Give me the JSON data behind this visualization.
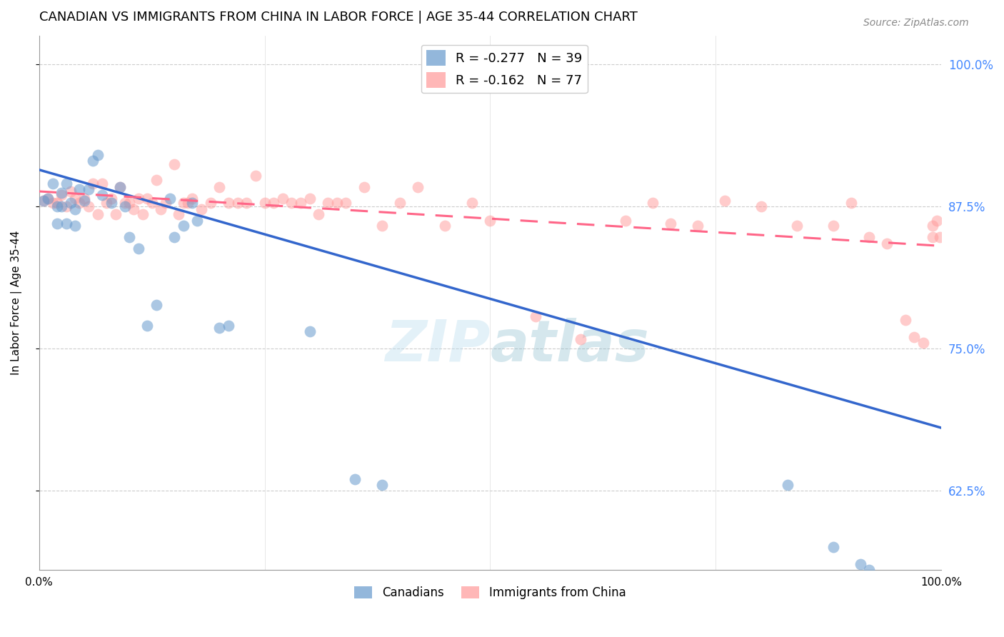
{
  "title": "CANADIAN VS IMMIGRANTS FROM CHINA IN LABOR FORCE | AGE 35-44 CORRELATION CHART",
  "source": "Source: ZipAtlas.com",
  "ylabel": "In Labor Force | Age 35-44",
  "xlabel": "",
  "xlim": [
    0.0,
    1.0
  ],
  "ylim": [
    0.555,
    1.025
  ],
  "yticks": [
    0.625,
    0.75,
    0.875,
    1.0
  ],
  "ytick_labels": [
    "62.5%",
    "75.0%",
    "87.5%",
    "100.0%"
  ],
  "xticks": [
    0.0,
    0.25,
    0.5,
    0.75,
    1.0
  ],
  "xtick_labels": [
    "0.0%",
    "",
    "",
    "",
    "100.0%"
  ],
  "canadians_R": -0.277,
  "canadians_N": 39,
  "immigrants_R": -0.162,
  "immigrants_N": 77,
  "canadians_color": "#6699CC",
  "immigrants_color": "#FF9999",
  "trend_canadian_color": "#3366CC",
  "trend_immigrant_color": "#FF6688",
  "watermark_zip": "ZIP",
  "watermark_atlas": "atlas",
  "canadians_x": [
    0.005,
    0.01,
    0.015,
    0.02,
    0.02,
    0.025,
    0.025,
    0.03,
    0.03,
    0.035,
    0.04,
    0.04,
    0.045,
    0.05,
    0.055,
    0.06,
    0.065,
    0.07,
    0.08,
    0.09,
    0.095,
    0.1,
    0.11,
    0.12,
    0.13,
    0.145,
    0.15,
    0.16,
    0.17,
    0.175,
    0.2,
    0.21,
    0.3,
    0.35,
    0.38,
    0.83,
    0.88,
    0.91,
    0.92
  ],
  "canadians_y": [
    0.88,
    0.882,
    0.895,
    0.875,
    0.86,
    0.887,
    0.875,
    0.895,
    0.86,
    0.878,
    0.872,
    0.858,
    0.89,
    0.88,
    0.89,
    0.915,
    0.92,
    0.885,
    0.878,
    0.892,
    0.875,
    0.848,
    0.838,
    0.77,
    0.788,
    0.882,
    0.848,
    0.858,
    0.878,
    0.862,
    0.768,
    0.77,
    0.765,
    0.635,
    0.63,
    0.63,
    0.575,
    0.56,
    0.555
  ],
  "immigrants_x": [
    0.005,
    0.01,
    0.015,
    0.02,
    0.025,
    0.03,
    0.035,
    0.04,
    0.045,
    0.05,
    0.055,
    0.06,
    0.065,
    0.07,
    0.075,
    0.08,
    0.085,
    0.09,
    0.095,
    0.1,
    0.105,
    0.11,
    0.115,
    0.12,
    0.125,
    0.13,
    0.135,
    0.14,
    0.15,
    0.155,
    0.16,
    0.165,
    0.17,
    0.18,
    0.19,
    0.2,
    0.21,
    0.22,
    0.23,
    0.24,
    0.25,
    0.26,
    0.27,
    0.28,
    0.29,
    0.3,
    0.31,
    0.32,
    0.33,
    0.34,
    0.36,
    0.38,
    0.4,
    0.42,
    0.45,
    0.48,
    0.5,
    0.55,
    0.6,
    0.65,
    0.68,
    0.7,
    0.73,
    0.76,
    0.8,
    0.84,
    0.88,
    0.9,
    0.92,
    0.94,
    0.96,
    0.97,
    0.98,
    0.99,
    0.99,
    0.995,
    0.998
  ],
  "immigrants_y": [
    0.88,
    0.882,
    0.878,
    0.878,
    0.885,
    0.875,
    0.888,
    0.882,
    0.878,
    0.882,
    0.875,
    0.895,
    0.868,
    0.895,
    0.878,
    0.882,
    0.868,
    0.892,
    0.878,
    0.878,
    0.872,
    0.882,
    0.868,
    0.882,
    0.878,
    0.898,
    0.872,
    0.878,
    0.912,
    0.868,
    0.878,
    0.878,
    0.882,
    0.872,
    0.878,
    0.892,
    0.878,
    0.878,
    0.878,
    0.902,
    0.878,
    0.878,
    0.882,
    0.878,
    0.878,
    0.882,
    0.868,
    0.878,
    0.878,
    0.878,
    0.892,
    0.858,
    0.878,
    0.892,
    0.858,
    0.878,
    0.862,
    0.778,
    0.758,
    0.862,
    0.878,
    0.86,
    0.858,
    0.88,
    0.875,
    0.858,
    0.858,
    0.878,
    0.848,
    0.842,
    0.775,
    0.76,
    0.755,
    0.848,
    0.858,
    0.862,
    0.848
  ],
  "trend_canadian_x0": 0.0,
  "trend_canadian_y0": 0.907,
  "trend_canadian_x1": 1.0,
  "trend_canadian_y1": 0.68,
  "trend_immigrant_x0": 0.0,
  "trend_immigrant_y0": 0.888,
  "trend_immigrant_x1": 1.0,
  "trend_immigrant_y1": 0.84
}
